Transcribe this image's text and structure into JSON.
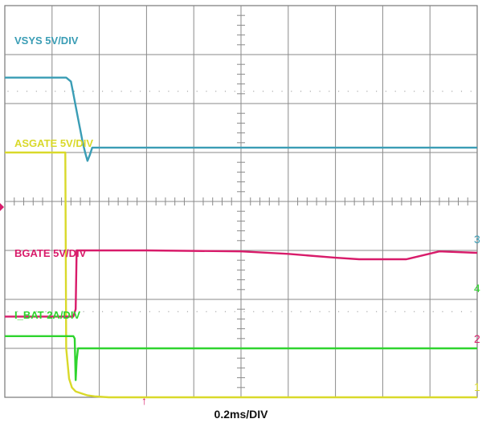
{
  "chart_data": {
    "type": "line",
    "grid": true,
    "x_divisions": 10,
    "y_divisions": 8,
    "timebase": "0.2ms/DIV",
    "trigger_marker": "↑",
    "series": [
      {
        "name": "VSYS 5V/DIV",
        "channel_marker": "3",
        "color": "#3a9db5",
        "x": [
          0,
          1.3,
          1.4,
          1.45,
          1.5,
          1.55,
          1.6,
          1.65,
          1.7,
          1.75,
          1.8,
          1.85,
          10
        ],
        "y": [
          6.53,
          6.53,
          6.45,
          6.2,
          5.95,
          5.7,
          5.45,
          5.2,
          5.0,
          4.83,
          4.95,
          5.1,
          5.1
        ]
      },
      {
        "name": "ASGATE 5V/DIV",
        "channel_marker": "1",
        "color": "#d9d92a",
        "x": [
          0,
          1.28,
          1.3,
          1.36,
          1.42,
          1.5,
          1.62,
          1.75,
          1.9,
          2.2,
          10
        ],
        "y": [
          5.0,
          5.0,
          1.0,
          0.38,
          0.2,
          0.12,
          0.08,
          0.04,
          0.02,
          0.0,
          0.0
        ]
      },
      {
        "name": "BGATE 5V/DIV",
        "channel_marker": "4",
        "color": "#d81b6a",
        "x": [
          0,
          1.45,
          1.5,
          1.52,
          3.0,
          5.0,
          6.0,
          7.0,
          7.5,
          8.5,
          9.2,
          10
        ],
        "y": [
          1.65,
          1.65,
          1.8,
          3.0,
          3.0,
          2.98,
          2.93,
          2.85,
          2.82,
          2.82,
          2.98,
          2.95
        ]
      },
      {
        "name": "I_BAT 2A/DIV",
        "channel_marker": "2",
        "color": "#2ed42e",
        "x": [
          0,
          1.45,
          1.48,
          1.5,
          1.52,
          1.55,
          10
        ],
        "y": [
          1.25,
          1.25,
          1.2,
          0.35,
          0.75,
          1.0,
          1.0
        ]
      }
    ],
    "ylim": [
      0,
      8
    ],
    "xlim": [
      0,
      10
    ]
  }
}
